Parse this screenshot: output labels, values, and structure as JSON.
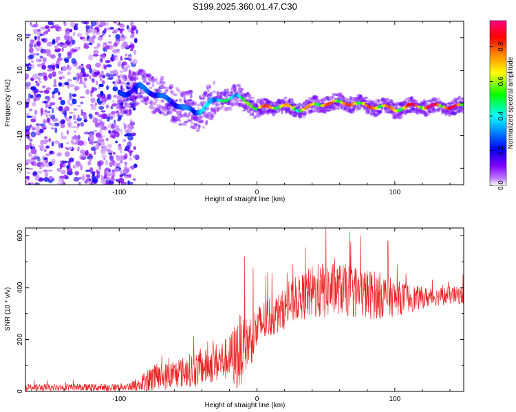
{
  "figure_title": "S199.2025.360.01.47.C30",
  "chart_data": [
    {
      "type": "heatmap",
      "title": "S199.2025.360.01.47.C30",
      "xlabel": "Height of straight line (km)",
      "ylabel": "Frequency (Hz)",
      "xlim": [
        -168,
        150
      ],
      "ylim": [
        -25,
        25
      ],
      "x_ticks": [
        -100,
        0,
        100
      ],
      "x_tick_labels": [
        "-100",
        "0",
        "100"
      ],
      "y_ticks": [
        -20,
        -10,
        0,
        10,
        20
      ],
      "y_tick_labels": [
        "-20",
        "-10",
        "0",
        "10",
        "20"
      ],
      "colorbar": {
        "label": "Normalized spectral amplitude",
        "range": [
          0,
          0.95
        ],
        "ticks": [
          0.0,
          0.2,
          0.4,
          0.6,
          0.8
        ],
        "tick_labels": [
          "0.0",
          "0.2",
          "0.4",
          "0.6",
          "0.8"
        ],
        "colormap": "rainbow (purple to red)"
      },
      "ridge": {
        "description": "Dominant frequency ridge vs height",
        "x": [
          -95,
          -85,
          -75,
          -65,
          -55,
          -45,
          -40,
          -35,
          -25,
          -15,
          -5,
          0,
          10,
          20,
          30,
          40,
          50,
          60,
          70,
          80,
          90,
          100,
          110,
          120,
          130,
          140,
          150
        ],
        "frequency": [
          3,
          5,
          3,
          1,
          -1,
          -3,
          -2,
          0,
          1,
          2,
          0,
          -2,
          -1,
          -1,
          -2,
          -1,
          0,
          0,
          0,
          -1,
          -1,
          -2,
          -1,
          -1,
          -1,
          -1,
          -1
        ],
        "amplitude": [
          0.25,
          0.3,
          0.3,
          0.3,
          0.3,
          0.35,
          0.4,
          0.4,
          0.5,
          0.5,
          0.6,
          0.85,
          0.8,
          0.75,
          0.7,
          0.75,
          0.8,
          0.85,
          0.8,
          0.8,
          0.85,
          0.75,
          0.9,
          0.9,
          0.95,
          0.9,
          0.9
        ]
      },
      "noise_region": {
        "x_range": [
          -168,
          -95
        ],
        "description": "broadband noise, low amplitude"
      }
    },
    {
      "type": "line",
      "title": "",
      "xlabel": "Height of straight line (km)",
      "ylabel": "SNR (10 * v/v)",
      "xlim": [
        -168,
        150
      ],
      "ylim": [
        0,
        630
      ],
      "x_ticks": [
        -100,
        0,
        100
      ],
      "x_tick_labels": [
        "-100",
        "0",
        "100"
      ],
      "y_ticks": [
        0,
        200,
        400,
        600
      ],
      "y_tick_labels": [
        "0",
        "200",
        "400",
        "600"
      ],
      "color": "#ee2222",
      "series": [
        {
          "name": "SNR",
          "x": [
            -168,
            -150,
            -130,
            -110,
            -95,
            -85,
            -80,
            -75,
            -70,
            -60,
            -50,
            -45,
            -40,
            -30,
            -20,
            -15,
            -12,
            -10,
            -5,
            0,
            5,
            10,
            15,
            20,
            25,
            30,
            40,
            50,
            60,
            70,
            80,
            90,
            100,
            110,
            120,
            130,
            140,
            150
          ],
          "base": [
            15,
            15,
            15,
            15,
            18,
            25,
            40,
            50,
            55,
            65,
            80,
            85,
            90,
            110,
            130,
            140,
            150,
            170,
            200,
            240,
            270,
            290,
            300,
            320,
            340,
            360,
            380,
            390,
            395,
            385,
            375,
            370,
            360,
            360,
            360,
            365,
            370,
            370
          ],
          "spread": [
            20,
            20,
            20,
            20,
            20,
            40,
            80,
            80,
            75,
            80,
            90,
            100,
            95,
            110,
            120,
            200,
            220,
            150,
            150,
            130,
            120,
            120,
            110,
            110,
            120,
            120,
            150,
            160,
            140,
            150,
            140,
            130,
            100,
            80,
            60,
            50,
            50,
            50
          ]
        }
      ],
      "peaks": [
        {
          "x": 50,
          "y": 630
        },
        {
          "x": -9,
          "y": 520
        },
        {
          "x": 95,
          "y": 580
        },
        {
          "x": 35,
          "y": 555
        }
      ]
    }
  ]
}
